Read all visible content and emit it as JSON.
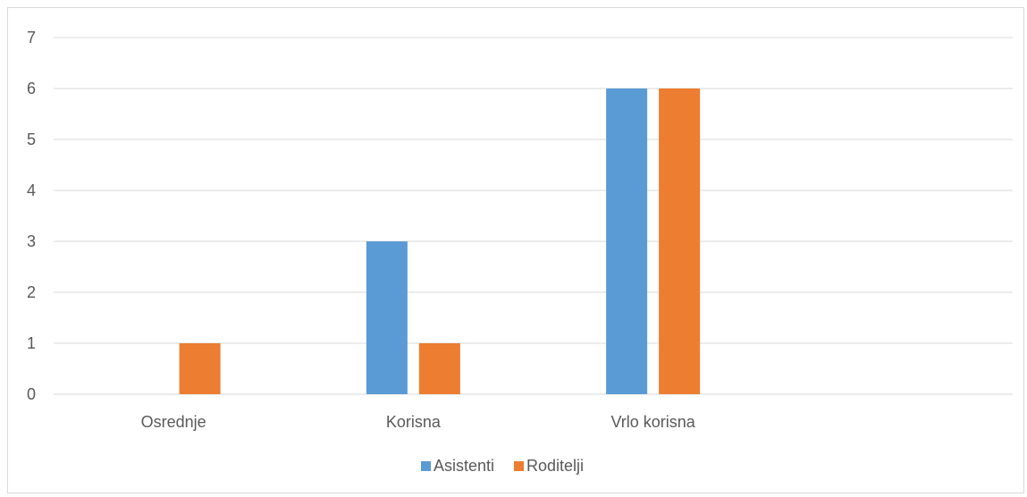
{
  "chart_data": {
    "type": "bar",
    "categories": [
      "Osrednje",
      "Korisna",
      "Vrlo korisna",
      ""
    ],
    "series": [
      {
        "name": "Asistenti",
        "color": "#5b9bd5",
        "values": [
          0,
          3,
          6,
          0
        ]
      },
      {
        "name": "Roditelji",
        "color": "#ed7d31",
        "values": [
          1,
          1,
          6,
          0
        ]
      }
    ],
    "ylim": [
      0,
      7
    ],
    "yticks": [
      0,
      1,
      2,
      3,
      4,
      5,
      6,
      7
    ],
    "grid": true,
    "legend": "bottom-center"
  }
}
